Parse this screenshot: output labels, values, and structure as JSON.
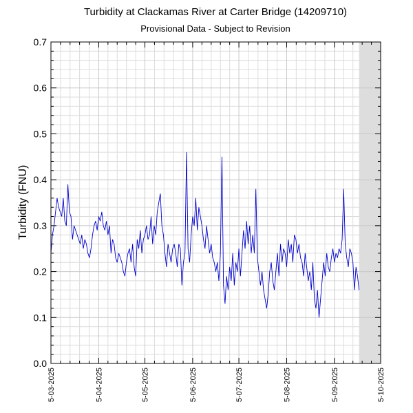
{
  "chart_data": {
    "type": "line",
    "title": "Turbidity at Clackamas River at Carter Bridge (14209710)",
    "subtitle": "Provisional Data - Subject to Revision",
    "y_label": "Turbidity (FNU)",
    "xlim": [
      0,
      214
    ],
    "xticks": [
      {
        "value": 0,
        "label": "5-03-2025"
      },
      {
        "value": 31,
        "label": "5-04-2025"
      },
      {
        "value": 61,
        "label": "5-05-2025"
      },
      {
        "value": 92,
        "label": "5-06-2025"
      },
      {
        "value": 122,
        "label": "5-07-2025"
      },
      {
        "value": 153,
        "label": "5-08-2025"
      },
      {
        "value": 184,
        "label": "5-09-2025"
      },
      {
        "value": 214,
        "label": "5-10-2025"
      }
    ],
    "ylim": [
      0,
      0.7
    ],
    "yticks": [
      {
        "value": 0,
        "label": "0.0"
      },
      0.1,
      0.2,
      0.3,
      0.4,
      0.5,
      0.6,
      0.7
    ],
    "grid": true,
    "x": [
      0,
      1,
      2,
      3,
      4,
      5,
      6,
      7,
      8,
      9,
      10,
      11,
      12,
      13,
      14,
      15,
      16,
      17,
      18,
      19,
      20,
      21,
      22,
      23,
      24,
      25,
      26,
      27,
      28,
      29,
      30,
      31,
      32,
      33,
      34,
      35,
      36,
      37,
      38,
      39,
      40,
      41,
      42,
      43,
      44,
      45,
      46,
      47,
      48,
      49,
      50,
      51,
      52,
      53,
      54,
      55,
      56,
      57,
      58,
      59,
      60,
      61,
      62,
      63,
      64,
      65,
      66,
      67,
      68,
      69,
      70,
      71,
      72,
      73,
      74,
      75,
      76,
      77,
      78,
      79,
      80,
      81,
      82,
      83,
      84,
      85,
      86,
      87,
      88,
      89,
      90,
      91,
      92,
      93,
      94,
      95,
      96,
      97,
      98,
      99,
      100,
      101,
      102,
      103,
      104,
      105,
      106,
      107,
      108,
      109,
      110,
      111,
      112,
      113,
      114,
      115,
      116,
      117,
      118,
      119,
      120,
      121,
      122,
      123,
      124,
      125,
      126,
      127,
      128,
      129,
      130,
      131,
      132,
      133,
      134,
      135,
      136,
      137,
      138,
      139,
      140,
      141,
      142,
      143,
      144,
      145,
      146,
      147,
      148,
      149,
      150,
      151,
      152,
      153,
      154,
      155,
      156,
      157,
      158,
      159,
      160,
      161,
      162,
      163,
      164,
      165,
      166,
      167,
      168,
      169,
      170,
      171,
      172,
      173,
      174,
      175,
      176,
      177,
      178,
      179,
      180,
      181,
      182,
      183,
      184,
      185,
      186,
      187,
      188,
      189,
      190,
      191,
      192,
      193,
      194,
      195,
      196,
      197,
      198,
      199,
      200
    ],
    "series": [
      {
        "color": "#0000cc",
        "values": [
          0.24,
          0.28,
          0.3,
          0.33,
          0.36,
          0.34,
          0.33,
          0.32,
          0.36,
          0.31,
          0.3,
          0.39,
          0.33,
          0.32,
          0.27,
          0.3,
          0.29,
          0.28,
          0.27,
          0.26,
          0.28,
          0.25,
          0.27,
          0.26,
          0.24,
          0.23,
          0.25,
          0.28,
          0.3,
          0.31,
          0.29,
          0.32,
          0.31,
          0.33,
          0.3,
          0.29,
          0.31,
          0.28,
          0.3,
          0.24,
          0.27,
          0.26,
          0.23,
          0.22,
          0.24,
          0.23,
          0.22,
          0.2,
          0.19,
          0.22,
          0.24,
          0.25,
          0.22,
          0.26,
          0.21,
          0.19,
          0.27,
          0.25,
          0.29,
          0.24,
          0.27,
          0.28,
          0.3,
          0.27,
          0.28,
          0.32,
          0.26,
          0.3,
          0.28,
          0.33,
          0.35,
          0.37,
          0.3,
          0.28,
          0.24,
          0.21,
          0.26,
          0.24,
          0.22,
          0.25,
          0.26,
          0.24,
          0.21,
          0.26,
          0.25,
          0.17,
          0.22,
          0.24,
          0.46,
          0.25,
          0.22,
          0.28,
          0.32,
          0.3,
          0.36,
          0.29,
          0.34,
          0.32,
          0.3,
          0.27,
          0.25,
          0.3,
          0.27,
          0.24,
          0.26,
          0.23,
          0.22,
          0.2,
          0.22,
          0.18,
          0.24,
          0.45,
          0.17,
          0.13,
          0.19,
          0.16,
          0.21,
          0.18,
          0.24,
          0.17,
          0.22,
          0.2,
          0.25,
          0.19,
          0.24,
          0.29,
          0.25,
          0.31,
          0.26,
          0.3,
          0.24,
          0.28,
          0.24,
          0.38,
          0.23,
          0.2,
          0.17,
          0.2,
          0.16,
          0.14,
          0.12,
          0.15,
          0.2,
          0.22,
          0.18,
          0.16,
          0.2,
          0.24,
          0.19,
          0.26,
          0.22,
          0.25,
          0.24,
          0.21,
          0.27,
          0.24,
          0.26,
          0.22,
          0.28,
          0.27,
          0.24,
          0.26,
          0.23,
          0.22,
          0.19,
          0.24,
          0.21,
          0.18,
          0.2,
          0.16,
          0.22,
          0.14,
          0.12,
          0.16,
          0.1,
          0.14,
          0.18,
          0.22,
          0.19,
          0.24,
          0.21,
          0.2,
          0.23,
          0.25,
          0.22,
          0.24,
          0.23,
          0.25,
          0.24,
          0.27,
          0.38,
          0.26,
          0.23,
          0.21,
          0.25,
          0.24,
          0.22,
          0.16,
          0.21,
          0.19,
          0.16
        ]
      }
    ]
  }
}
